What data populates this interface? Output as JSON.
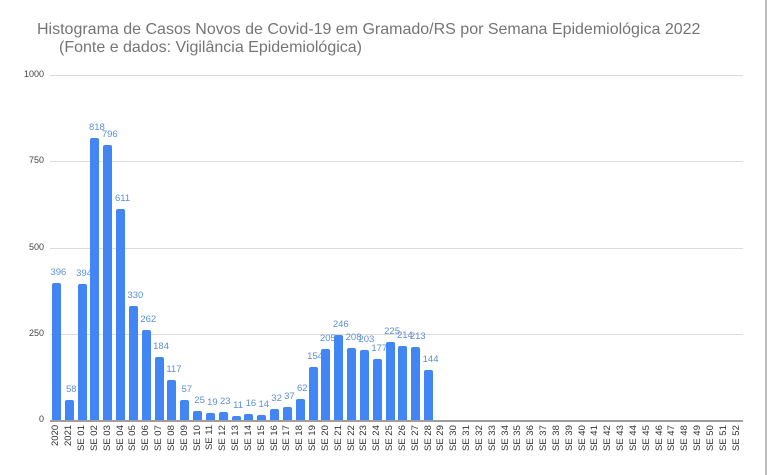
{
  "chart_data": {
    "type": "bar",
    "title": "Histograma de Casos Novos de Covid-19 em Gramado/RS por Semana Epidemiológica 2022",
    "subtitle": "(Fonte e dados: Vigilância Epidemiológica)",
    "xlabel": "",
    "ylabel": "",
    "ylim": [
      0,
      1000
    ],
    "yticks": [
      "0",
      "250",
      "500",
      "750",
      "1000"
    ],
    "grid": true,
    "legend": "none",
    "bar_color": "#4285f4",
    "label_color": "#5b8fd8",
    "categories": [
      "2020",
      "2021",
      "SE 01",
      "SE 02",
      "SE 03",
      "SE 04",
      "SE 05",
      "SE 06",
      "SE 07",
      "SE 08",
      "SE 09",
      "SE 10",
      "SE 11",
      "SE 12",
      "SE 13",
      "SE 14",
      "SE 15",
      "SE 16",
      "SE 17",
      "SE 18",
      "SE 19",
      "SE 20",
      "SE 21",
      "SE 22",
      "SE 23",
      "SE 24",
      "SE 25",
      "SE 26",
      "SE 27",
      "SE 28",
      "SE 29",
      "SE 30",
      "SE 31",
      "SE 32",
      "SE 33",
      "SE 34",
      "SE 35",
      "SE 36",
      "SE 37",
      "SE 38",
      "SE 39",
      "SE 40",
      "SE 41",
      "SE 42",
      "SE 43",
      "SE 44",
      "SE 45",
      "SE 46",
      "SE 47",
      "SE 48",
      "SE 49",
      "SE 50",
      "SE 51",
      "SE 52"
    ],
    "values": [
      396,
      58,
      394,
      818,
      796,
      611,
      330,
      262,
      184,
      117,
      57,
      25,
      19,
      23,
      11,
      16,
      14,
      32,
      37,
      62,
      154,
      205,
      246,
      208,
      203,
      177,
      225,
      214,
      213,
      144,
      null,
      null,
      null,
      null,
      null,
      null,
      null,
      null,
      null,
      null,
      null,
      null,
      null,
      null,
      null,
      null,
      null,
      null,
      null,
      null,
      null,
      null,
      null,
      null
    ],
    "data_labels": [
      "396",
      "58",
      "394",
      "818",
      "796",
      "611",
      "330",
      "262",
      "184",
      "117",
      "57",
      "25",
      "19",
      "23",
      "11",
      "16",
      "14",
      "32",
      "37",
      "62",
      "154",
      "205",
      "246",
      "208",
      "203",
      "177",
      "225",
      "214",
      "213",
      "144"
    ]
  }
}
